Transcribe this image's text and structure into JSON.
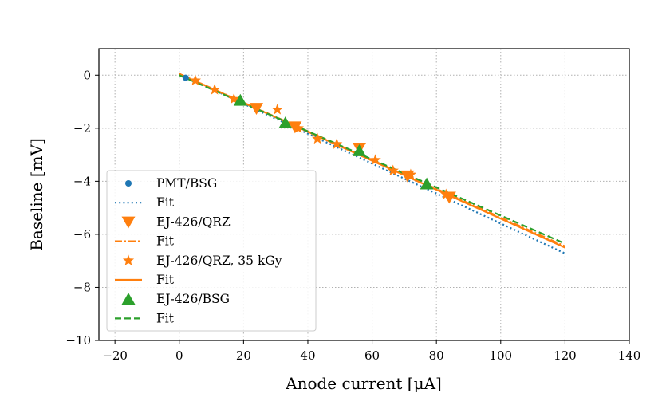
{
  "chart_data": {
    "type": "scatter",
    "title": "",
    "xlabel": "Anode current [μA]",
    "ylabel": "Baseline [mV]",
    "xlim": [
      -25,
      140
    ],
    "ylim": [
      -10,
      1
    ],
    "xticks": [
      -20,
      0,
      20,
      40,
      60,
      80,
      100,
      120,
      140
    ],
    "yticks": [
      0,
      -2,
      -4,
      -6,
      -8,
      -10
    ],
    "xtick_labels": [
      "−20",
      "0",
      "20",
      "40",
      "60",
      "80",
      "100",
      "120",
      "140"
    ],
    "ytick_labels": [
      "0",
      "−2",
      "−4",
      "−6",
      "−8",
      "−10"
    ],
    "grid": true,
    "legend_position": "lower-left",
    "series": [
      {
        "name": "PMT/BSG",
        "marker": "circle",
        "color": "#1f77b4",
        "points": [
          [
            2,
            -0.1
          ]
        ],
        "fit": {
          "label": "Fit",
          "style": "dotted",
          "x": [
            0,
            120
          ],
          "y": [
            0.05,
            -6.72
          ]
        }
      },
      {
        "name": "EJ-426/QRZ",
        "marker": "triangle-down",
        "color": "#ff7f0e",
        "points": [
          [
            24,
            -1.25
          ],
          [
            36,
            -1.95
          ],
          [
            56,
            -2.75
          ],
          [
            71,
            -3.8
          ],
          [
            84,
            -4.6
          ]
        ],
        "fit": {
          "label": "Fit",
          "style": "dashdot",
          "x": [
            0,
            120
          ],
          "y": [
            0.05,
            -6.45
          ]
        }
      },
      {
        "name": "EJ-426/QRZ, 35 kGy",
        "marker": "star",
        "color": "#ff7f0e",
        "points": [
          [
            5,
            -0.2
          ],
          [
            11,
            -0.55
          ],
          [
            17,
            -0.9
          ],
          [
            30.5,
            -1.3
          ],
          [
            37,
            -2.0
          ],
          [
            43,
            -2.4
          ],
          [
            49,
            -2.6
          ],
          [
            61,
            -3.2
          ],
          [
            66.5,
            -3.6
          ],
          [
            72,
            -3.75
          ],
          [
            83,
            -4.5
          ]
        ],
        "fit": {
          "label": "Fit",
          "style": "solid",
          "x": [
            0,
            120
          ],
          "y": [
            0.05,
            -6.5
          ]
        }
      },
      {
        "name": "EJ-426/BSG",
        "marker": "triangle-up",
        "color": "#2ca02c",
        "points": [
          [
            19,
            -0.95
          ],
          [
            33,
            -1.8
          ],
          [
            56,
            -2.85
          ],
          [
            77,
            -4.1
          ]
        ],
        "fit": {
          "label": "Fit",
          "style": "dashed",
          "x": [
            0,
            120
          ],
          "y": [
            0.0,
            -6.35
          ]
        }
      }
    ]
  }
}
